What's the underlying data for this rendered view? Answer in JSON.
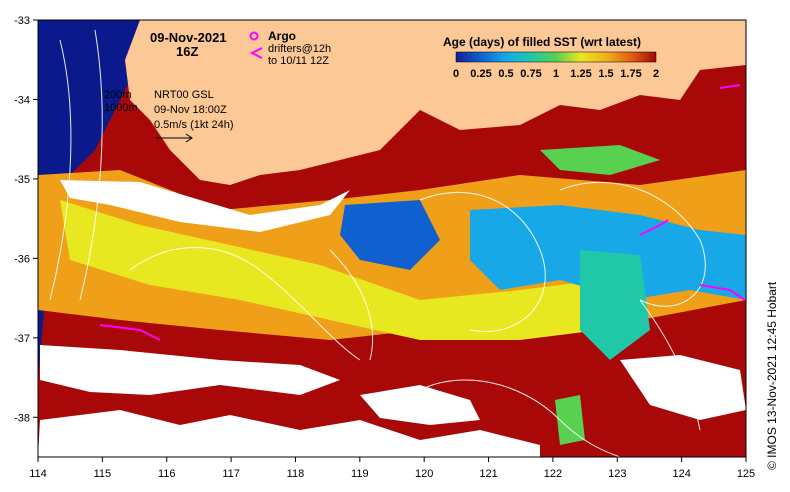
{
  "map": {
    "date_label": "09-Nov-2021",
    "time_label": "16Z",
    "legend_title": "Age (days) of filled SST (wrt latest)",
    "colorbar_ticks": [
      "0",
      "0.25",
      "0.5",
      "0.75",
      "1",
      "1.25",
      "1.5",
      "1.75",
      "2"
    ],
    "colorbar_colors": [
      "#10209a",
      "#1060d0",
      "#18a8e8",
      "#20c8a8",
      "#58d050",
      "#e8e820",
      "#f0b020",
      "#e06010",
      "#a00808"
    ],
    "argo_label": "Argo",
    "drifters_label_1": "drifters@12h",
    "drifters_label_2": "to 10/11 12Z",
    "depth_200": "200m",
    "depth_1000": "1000m",
    "product_label": "NRT00 GSL",
    "product_time": "09-Nov 18:00Z",
    "scale_label": "0.5m/s (1kt 24h)",
    "credit": "© IMOS 13-Nov-2021 12:45 Hobart",
    "land_color": "#fbc896",
    "deep_ocean_color": "#0a1a8c",
    "argo_color": "#ff00ff",
    "drifter_color": "#ff00ff"
  },
  "chart_data": {
    "type": "heatmap",
    "x_ticks": [
      "114",
      "115",
      "116",
      "117",
      "118",
      "119",
      "120",
      "121",
      "122",
      "123",
      "124",
      "125"
    ],
    "y_ticks": [
      "-33",
      "-34",
      "-35",
      "-36",
      "-37",
      "-38"
    ],
    "xlim": [
      114,
      125
    ],
    "ylim": [
      -38.5,
      -33
    ]
  }
}
